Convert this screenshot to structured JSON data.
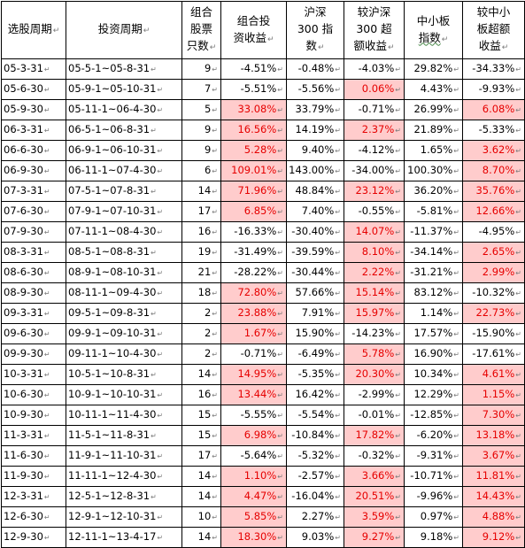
{
  "headers": [
    [
      "选股周期"
    ],
    [
      "投资周期"
    ],
    [
      "组合",
      "股票",
      "只数"
    ],
    [
      "组合投",
      "资收益"
    ],
    [
      "沪深",
      "300 指",
      "数"
    ],
    [
      "较沪深",
      "300 超",
      "额收益"
    ],
    [
      "中小板",
      "指数"
    ],
    [
      "较中小",
      "板超额",
      "收益"
    ]
  ],
  "underlined_header_word": "指数",
  "cell_mark": "↵",
  "highlight_colors": {
    "fill": "#ffcccc",
    "text": "#e60000"
  },
  "rows": [
    [
      "05-3-31",
      "05-5-1~05-8-31",
      "9",
      "-4.51%",
      "-0.48%",
      "-4.03%",
      "29.82%",
      "-34.33%"
    ],
    [
      "05-6-30",
      "05-9-1~05-10-31",
      "7",
      "-5.51%",
      "-5.56%",
      "0.06%",
      "4.43%",
      "-9.93%"
    ],
    [
      "05-9-30",
      "05-11-1~06-4-30",
      "5",
      "33.08%",
      "33.79%",
      "-0.71%",
      "26.99%",
      "6.08%"
    ],
    [
      "06-3-31",
      "06-5-1~06-8-31",
      "9",
      "16.56%",
      "14.19%",
      "2.37%",
      "21.89%",
      "-5.33%"
    ],
    [
      "06-6-30",
      "06-9-1~06-10-31",
      "9",
      "5.28%",
      "9.40%",
      "-4.12%",
      "1.65%",
      "3.62%"
    ],
    [
      "06-9-30",
      "06-11-1~07-4-30",
      "6",
      "109.01%",
      "143.00%",
      "-34.00%",
      "100.30%",
      "8.70%"
    ],
    [
      "07-3-31",
      "07-5-1~07-8-31",
      "14",
      "71.96%",
      "48.84%",
      "23.12%",
      "36.20%",
      "35.76%"
    ],
    [
      "07-6-30",
      "07-9-1~07-10-31",
      "17",
      "6.85%",
      "7.40%",
      "-0.55%",
      "-5.81%",
      "12.66%"
    ],
    [
      "07-9-30",
      "07-11-1~08-4-30",
      "16",
      "-16.33%",
      "-30.40%",
      "14.07%",
      "-11.37%",
      "-4.95%"
    ],
    [
      "08-3-31",
      "08-5-1~08-8-31",
      "19",
      "-31.49%",
      "-39.59%",
      "8.10%",
      "-34.14%",
      "2.65%"
    ],
    [
      "08-6-30",
      "08-9-1~08-10-31",
      "21",
      "-28.22%",
      "-30.44%",
      "2.22%",
      "-31.21%",
      "2.99%"
    ],
    [
      "08-9-30",
      "08-11-1~09-4-30",
      "18",
      "72.80%",
      "57.66%",
      "15.14%",
      "83.12%",
      "-10.32%"
    ],
    [
      "09-3-31",
      "09-5-1~09-8-31",
      "2",
      "23.88%",
      "7.91%",
      "15.97%",
      "1.14%",
      "22.73%"
    ],
    [
      "09-6-30",
      "09-9-1~09-10-31",
      "2",
      "1.67%",
      "15.90%",
      "-14.23%",
      "17.57%",
      "-15.90%"
    ],
    [
      "09-9-30",
      "09-11-1~10-4-30",
      "2",
      "-0.71%",
      "-6.49%",
      "5.78%",
      "16.90%",
      "-17.61%"
    ],
    [
      "10-3-31",
      "10-5-1~10-8-31",
      "14",
      "14.95%",
      "-5.35%",
      "20.30%",
      "10.34%",
      "4.61%"
    ],
    [
      "10-6-30",
      "10-9-1~10-10-31",
      "16",
      "13.44%",
      "16.42%",
      "-2.99%",
      "12.29%",
      "1.15%"
    ],
    [
      "10-9-30",
      "10-11-1~11-4-30",
      "15",
      "-5.55%",
      "-5.54%",
      "-0.01%",
      "-12.85%",
      "7.30%"
    ],
    [
      "11-3-31",
      "11-5-1~11-8-31",
      "15",
      "6.98%",
      "-10.84%",
      "17.82%",
      "-6.20%",
      "13.18%"
    ],
    [
      "11-6-30",
      "11-9-1~11-10-31",
      "17",
      "-5.64%",
      "-5.32%",
      "-0.32%",
      "-9.31%",
      "3.67%"
    ],
    [
      "11-9-30",
      "11-11-1~12-4-30",
      "14",
      "1.10%",
      "-2.57%",
      "3.66%",
      "-10.71%",
      "11.81%"
    ],
    [
      "12-3-31",
      "12-5-1~12-8-31",
      "14",
      "4.47%",
      "-16.04%",
      "20.51%",
      "-9.96%",
      "14.43%"
    ],
    [
      "12-6-30",
      "12-9-1~12-10-31",
      "10",
      "5.85%",
      "2.27%",
      "3.59%",
      "0.97%",
      "4.88%"
    ],
    [
      "12-9-30",
      "12-11-1~13-4-17",
      "14",
      "18.30%",
      "9.03%",
      "9.27%",
      "9.18%",
      "9.12%"
    ]
  ],
  "highlighted": [
    [],
    [
      5
    ],
    [
      3,
      7
    ],
    [
      3,
      5
    ],
    [
      3,
      7
    ],
    [
      3,
      7
    ],
    [
      3,
      5,
      7
    ],
    [
      3,
      7
    ],
    [
      5
    ],
    [
      5,
      7
    ],
    [
      5,
      7
    ],
    [
      3,
      5
    ],
    [
      3,
      5,
      7
    ],
    [
      3
    ],
    [
      5
    ],
    [
      3,
      5,
      7
    ],
    [
      3,
      7
    ],
    [
      7
    ],
    [
      3,
      5,
      7
    ],
    [
      7
    ],
    [
      3,
      5,
      7
    ],
    [
      3,
      5,
      7
    ],
    [
      3,
      5,
      7
    ],
    [
      3,
      5,
      7
    ]
  ]
}
